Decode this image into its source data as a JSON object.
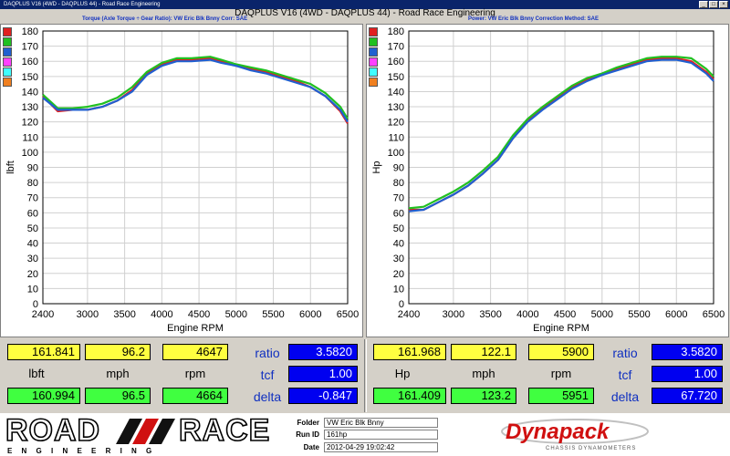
{
  "window": {
    "title": "DAQPLUS V16 (4WD - DAQPLUS 44) - Road Race Engineering"
  },
  "header": {
    "main_title": "DAQPLUS V16 (4WD - DAQPLUS 44) - Road Race Engineering",
    "left_info": "Torque (Axle Torque ÷ Gear Ratio): VW Eric Blk Bnny        Corr: SAE",
    "right_info": "Power: VW Eric Blk Bnny        Correction Method: SAE"
  },
  "legend_colors": [
    "#e02020",
    "#20c020",
    "#2060d0",
    "#ff40ff",
    "#40ffff",
    "#f08020"
  ],
  "chart_data": [
    {
      "type": "line",
      "ylabel": "lbft",
      "xlabel": "Engine RPM",
      "xlim": [
        2400,
        6500
      ],
      "ylim": [
        0,
        180
      ],
      "xticks": [
        2400,
        3000,
        3500,
        4000,
        4500,
        5000,
        5500,
        6000,
        6500
      ],
      "yticks": [
        0,
        10,
        20,
        30,
        40,
        50,
        60,
        70,
        80,
        90,
        100,
        110,
        120,
        130,
        140,
        150,
        160,
        170,
        180
      ],
      "series": [
        {
          "color": "#e02020",
          "x": [
            2400,
            2600,
            2800,
            3000,
            3200,
            3400,
            3600,
            3800,
            4000,
            4200,
            4400,
            4650,
            4800,
            5000,
            5200,
            5400,
            5600,
            5800,
            6000,
            6200,
            6400,
            6500
          ],
          "y": [
            137,
            127,
            128,
            128,
            130,
            134,
            141,
            152,
            158,
            161,
            161,
            162,
            160,
            157,
            155,
            153,
            150,
            147,
            143,
            137,
            127,
            119
          ]
        },
        {
          "color": "#20c020",
          "x": [
            2400,
            2600,
            2800,
            3000,
            3200,
            3400,
            3600,
            3800,
            4000,
            4200,
            4400,
            4650,
            4800,
            5000,
            5200,
            5400,
            5600,
            5800,
            6000,
            6200,
            6400,
            6500
          ],
          "y": [
            138,
            129,
            129,
            130,
            132,
            136,
            143,
            153,
            159,
            162,
            162,
            163,
            161,
            158,
            156,
            154,
            151,
            148,
            145,
            139,
            130,
            122
          ]
        },
        {
          "color": "#2060d0",
          "x": [
            2400,
            2600,
            2800,
            3000,
            3200,
            3400,
            3600,
            3800,
            4000,
            4200,
            4400,
            4650,
            4800,
            5000,
            5200,
            5400,
            5600,
            5800,
            6000,
            6200,
            6400,
            6500
          ],
          "y": [
            136,
            128,
            128,
            128,
            130,
            134,
            140,
            151,
            157,
            160,
            160,
            161,
            159,
            157,
            154,
            152,
            149,
            146,
            143,
            137,
            128,
            120
          ]
        }
      ]
    },
    {
      "type": "line",
      "ylabel": "Hp",
      "xlabel": "Engine RPM",
      "xlim": [
        2400,
        6500
      ],
      "ylim": [
        0,
        180
      ],
      "xticks": [
        2400,
        3000,
        3500,
        4000,
        4500,
        5000,
        5500,
        6000,
        6500
      ],
      "yticks": [
        0,
        10,
        20,
        30,
        40,
        50,
        60,
        70,
        80,
        90,
        100,
        110,
        120,
        130,
        140,
        150,
        160,
        170,
        180
      ],
      "series": [
        {
          "color": "#e02020",
          "x": [
            2400,
            2600,
            2800,
            3000,
            3200,
            3400,
            3600,
            3800,
            4000,
            4200,
            4400,
            4600,
            4800,
            5000,
            5200,
            5400,
            5600,
            5800,
            6000,
            6200,
            6400,
            6500
          ],
          "y": [
            62,
            62,
            67,
            72,
            78,
            86,
            95,
            109,
            121,
            129,
            136,
            143,
            148,
            151,
            155,
            158,
            161,
            162,
            162,
            160,
            153,
            148
          ]
        },
        {
          "color": "#20c020",
          "x": [
            2400,
            2600,
            2800,
            3000,
            3200,
            3400,
            3600,
            3800,
            4000,
            4200,
            4400,
            4600,
            4800,
            5000,
            5200,
            5400,
            5600,
            5800,
            6000,
            6200,
            6400,
            6500
          ],
          "y": [
            63,
            64,
            69,
            74,
            80,
            88,
            97,
            111,
            122,
            130,
            137,
            144,
            149,
            152,
            156,
            159,
            162,
            163,
            163,
            162,
            155,
            150
          ]
        },
        {
          "color": "#2060d0",
          "x": [
            2400,
            2600,
            2800,
            3000,
            3200,
            3400,
            3600,
            3800,
            4000,
            4200,
            4400,
            4600,
            4800,
            5000,
            5200,
            5400,
            5600,
            5800,
            6000,
            6200,
            6400,
            6500
          ],
          "y": [
            61,
            62,
            67,
            72,
            78,
            86,
            95,
            109,
            120,
            128,
            135,
            142,
            147,
            151,
            154,
            157,
            160,
            161,
            161,
            159,
            152,
            147
          ]
        }
      ]
    }
  ],
  "left_readout": {
    "row1": [
      "161.841",
      "96.2",
      "4647"
    ],
    "units": [
      "lbft",
      "mph",
      "rpm"
    ],
    "row2": [
      "160.994",
      "96.5",
      "4664"
    ],
    "factors": [
      {
        "label": "ratio",
        "value": "3.5820"
      },
      {
        "label": "tcf",
        "value": "1.00"
      },
      {
        "label": "delta",
        "value": "-0.847"
      }
    ]
  },
  "right_readout": {
    "row1": [
      "161.968",
      "122.1",
      "5900"
    ],
    "units": [
      "Hp",
      "mph",
      "rpm"
    ],
    "row2": [
      "161.409",
      "123.2",
      "5951"
    ],
    "factors": [
      {
        "label": "ratio",
        "value": "3.5820"
      },
      {
        "label": "tcf",
        "value": "1.00"
      },
      {
        "label": "delta",
        "value": "67.720"
      }
    ]
  },
  "footer": {
    "logo_road": "ROAD",
    "logo_race": "RACE",
    "logo_sub": "E N G I N E E R I N G",
    "folder_label": "Folder",
    "folder_value": "VW Eric Blk Bnny",
    "runid_label": "Run ID",
    "runid_value": "161hp",
    "date_label": "Date",
    "date_value": "2012-04-29 19:02:42",
    "dyno_logo": "Dynapack",
    "dyno_sub": "CHASSIS DYNAMOMETERS"
  }
}
